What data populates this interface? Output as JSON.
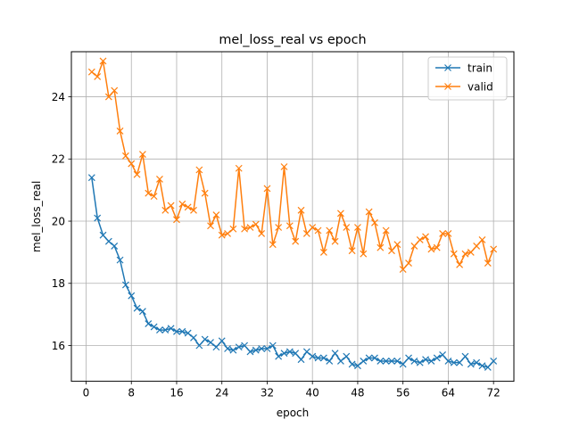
{
  "chart_data": {
    "type": "line",
    "title": "mel_loss_real vs epoch",
    "xlabel": "epoch",
    "ylabel": "mel_loss_real",
    "xlim": [
      -2.6,
      75.6
    ],
    "ylim": [
      14.85,
      25.45
    ],
    "xticks": [
      0,
      8,
      16,
      24,
      32,
      40,
      48,
      56,
      64,
      72
    ],
    "yticks": [
      16,
      18,
      20,
      22,
      24
    ],
    "grid": true,
    "legend_position": "upper right",
    "x": [
      1,
      2,
      3,
      4,
      5,
      6,
      7,
      8,
      9,
      10,
      11,
      12,
      13,
      14,
      15,
      16,
      17,
      18,
      19,
      20,
      21,
      22,
      23,
      24,
      25,
      26,
      27,
      28,
      29,
      30,
      31,
      32,
      33,
      34,
      35,
      36,
      37,
      38,
      39,
      40,
      41,
      42,
      43,
      44,
      45,
      46,
      47,
      48,
      49,
      50,
      51,
      52,
      53,
      54,
      55,
      56,
      57,
      58,
      59,
      60,
      61,
      62,
      63,
      64,
      65,
      66,
      67,
      68,
      69,
      70,
      71,
      72
    ],
    "series": [
      {
        "name": "train",
        "color": "#1f77b4",
        "marker": "x",
        "values": [
          21.4,
          20.1,
          19.55,
          19.35,
          19.2,
          18.75,
          17.95,
          17.6,
          17.2,
          17.1,
          16.7,
          16.6,
          16.5,
          16.5,
          16.55,
          16.45,
          16.45,
          16.4,
          16.25,
          16.0,
          16.2,
          16.1,
          15.95,
          16.15,
          15.9,
          15.85,
          15.95,
          16.0,
          15.8,
          15.85,
          15.9,
          15.9,
          16.0,
          15.65,
          15.75,
          15.8,
          15.75,
          15.55,
          15.8,
          15.65,
          15.6,
          15.6,
          15.5,
          15.75,
          15.5,
          15.65,
          15.4,
          15.35,
          15.5,
          15.6,
          15.6,
          15.5,
          15.5,
          15.5,
          15.5,
          15.4,
          15.6,
          15.5,
          15.45,
          15.55,
          15.5,
          15.6,
          15.7,
          15.5,
          15.45,
          15.45,
          15.65,
          15.4,
          15.45,
          15.35,
          15.3,
          15.5
        ]
      },
      {
        "name": "valid",
        "color": "#ff7f0e",
        "marker": "x",
        "values": [
          24.8,
          24.65,
          25.15,
          24.0,
          24.2,
          22.9,
          22.1,
          21.85,
          21.5,
          22.15,
          20.9,
          20.8,
          21.35,
          20.35,
          20.5,
          20.05,
          20.55,
          20.45,
          20.35,
          21.65,
          20.9,
          19.85,
          20.2,
          19.55,
          19.6,
          19.75,
          21.7,
          19.75,
          19.8,
          19.9,
          19.6,
          21.05,
          19.25,
          19.8,
          21.75,
          19.85,
          19.35,
          20.35,
          19.6,
          19.8,
          19.7,
          19.0,
          19.7,
          19.35,
          20.25,
          19.8,
          19.05,
          19.8,
          18.95,
          20.3,
          19.95,
          19.15,
          19.7,
          19.05,
          19.25,
          18.45,
          18.65,
          19.2,
          19.4,
          19.5,
          19.1,
          19.15,
          19.6,
          19.6,
          18.95,
          18.6,
          18.95,
          19.0,
          19.2,
          19.4,
          18.65,
          19.1
        ]
      }
    ]
  }
}
